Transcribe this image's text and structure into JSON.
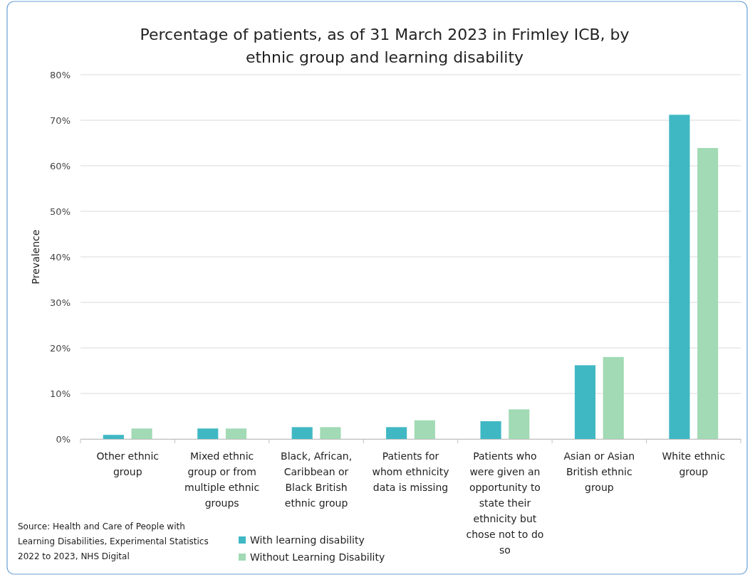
{
  "chart_data": {
    "type": "bar",
    "title": "Percentage of patients, as of 31 March 2023 in Frimley ICB, by ethnic group and learning disability",
    "ylabel": "Prevalence",
    "categories": [
      "Other ethnic group",
      "Mixed ethnic group or from multiple ethnic groups",
      "Black, African, Caribbean or Black British ethnic group",
      "Patients for whom ethnicity data is missing",
      "Patients who were given an opportunity to state their ethnicity but chose not to do so",
      "Asian or Asian British ethnic group",
      "White ethnic group"
    ],
    "series": [
      {
        "name": "With learning disability",
        "color": "#40b8c4",
        "values": [
          0.9,
          2.3,
          2.6,
          2.6,
          3.9,
          16.2,
          71.2
        ]
      },
      {
        "name": "Without Learning Disability",
        "color": "#a1dab4",
        "values": [
          2.3,
          2.3,
          2.6,
          4.1,
          6.5,
          18.0,
          63.9
        ]
      }
    ],
    "ylim": [
      0,
      80
    ],
    "yticks": [
      {
        "value": 0,
        "label": "0%"
      },
      {
        "value": 10,
        "label": "10%"
      },
      {
        "value": 20,
        "label": "20%"
      },
      {
        "value": 30,
        "label": "30%"
      },
      {
        "value": 40,
        "label": "40%"
      },
      {
        "value": 50,
        "label": "50%"
      },
      {
        "value": 60,
        "label": "60%"
      },
      {
        "value": 70,
        "label": "70%"
      },
      {
        "value": 80,
        "label": "80%"
      }
    ],
    "grid": "y",
    "legend": "bottom",
    "annotations": [
      "Source: Health and Care of People with Learning Disabilities, Experimental Statistics 2022 to 2023, NHS Digital"
    ]
  }
}
